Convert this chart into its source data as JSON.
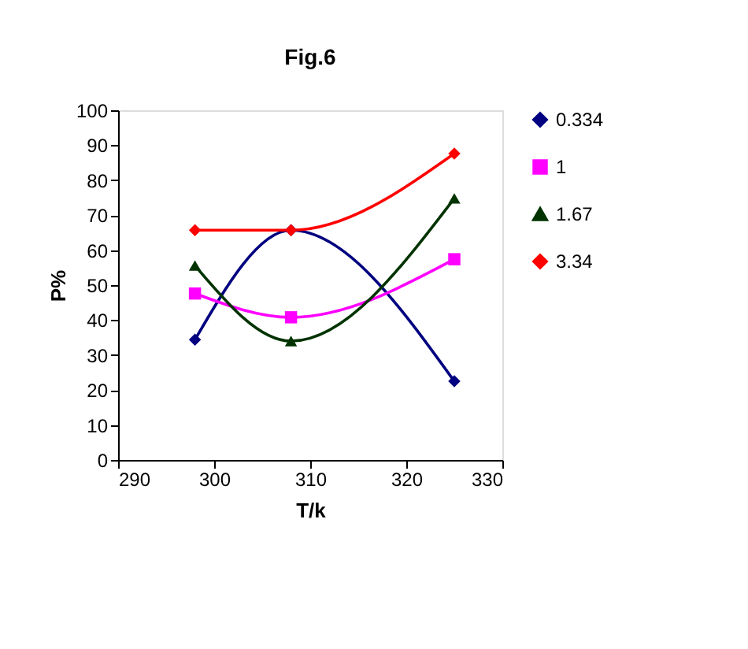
{
  "chart_data": {
    "type": "line",
    "title": "Fig.6",
    "xlabel": "T/k",
    "ylabel": "P%",
    "x": [
      298,
      308,
      325
    ],
    "series": [
      {
        "name": "0.334",
        "color": "#000080",
        "marker": "diamond",
        "values": [
          34.4,
          65.7,
          22.5
        ]
      },
      {
        "name": "1",
        "color": "#ff00ff",
        "marker": "square",
        "values": [
          47.6,
          40.8,
          57.4
        ]
      },
      {
        "name": "1.67",
        "color": "#003300",
        "marker": "triangle",
        "values": [
          55.6,
          34,
          74.8
        ]
      },
      {
        "name": "3.34",
        "color": "#ff0000",
        "marker": "diamond",
        "values": [
          65.7,
          65.7,
          87.6
        ]
      }
    ],
    "xlim": [
      290,
      330
    ],
    "xticks": [
      290,
      300,
      310,
      320,
      330
    ],
    "ylim": [
      0,
      100
    ],
    "yticks": [
      0,
      10,
      20,
      30,
      40,
      50,
      60,
      70,
      80,
      90,
      100
    ],
    "grid": false,
    "legend": "right",
    "line_style": "solid"
  }
}
